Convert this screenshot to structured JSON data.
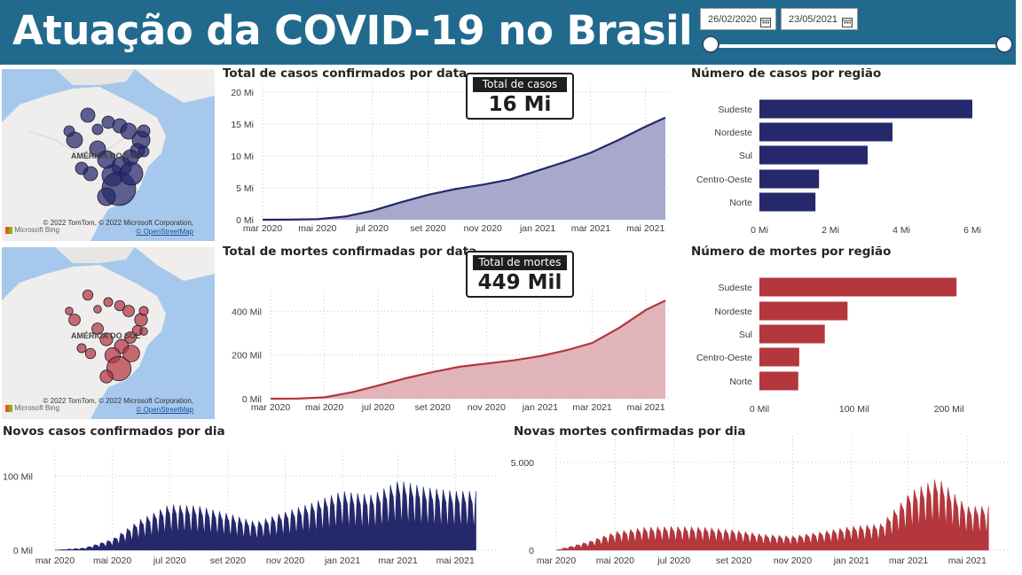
{
  "header": {
    "title": "Atuação da COVID-19 no Brasil"
  },
  "date_filter": {
    "start": "26/02/2020",
    "end": "23/05/2021"
  },
  "map_cases": {
    "region_label": "AMÉRICA DO SUL",
    "credit_line1": "© 2022 TomTom, © 2022 Microsoft Corporation,",
    "credit_line2": "© OpenStreetMap",
    "bing": "Microsoft Bing",
    "color": "#25286b"
  },
  "map_deaths": {
    "region_label": "AMÉRICA DO SUL",
    "credit_line1": "© 2022 TomTom, © 2022 Microsoft Corporation,",
    "credit_line2": "© OpenStreetMap",
    "bing": "Microsoft Bing",
    "color": "#b3373d"
  },
  "kpi_cases": {
    "label": "Total de casos",
    "value": "16 Mi"
  },
  "kpi_deaths": {
    "label": "Total de mortes",
    "value": "449 Mil"
  },
  "colors": {
    "navy": "#25286b",
    "navy_fill": "#a7a8cb",
    "red": "#b3373d",
    "red_fill": "#e0b4b8"
  },
  "chart_data": [
    {
      "id": "cum_cases",
      "type": "area",
      "title": "Total de casos confirmados por data",
      "x": [
        "2020-03-01",
        "2020-04-01",
        "2020-05-01",
        "2020-06-01",
        "2020-07-01",
        "2020-08-01",
        "2020-09-01",
        "2020-10-01",
        "2020-11-01",
        "2020-12-01",
        "2021-01-01",
        "2021-02-01",
        "2021-03-01",
        "2021-04-01",
        "2021-05-01",
        "2021-05-23"
      ],
      "y": [
        0.0,
        0.01,
        0.09,
        0.5,
        1.4,
        2.7,
        3.9,
        4.8,
        5.5,
        6.3,
        7.7,
        9.1,
        10.5,
        12.5,
        14.6,
        16.0
      ],
      "unit": "Mi",
      "x_ticks": [
        "mar 2020",
        "mai 2020",
        "jul 2020",
        "set 2020",
        "nov 2020",
        "jan 2021",
        "mar 2021",
        "mai 2021"
      ],
      "y_ticks": [
        "0 Mi",
        "5 Mi",
        "10 Mi",
        "15 Mi",
        "20 Mi"
      ],
      "ylim": [
        0,
        20
      ],
      "grid": true
    },
    {
      "id": "cum_deaths",
      "type": "area",
      "title": "Total de mortes confirmadas por data",
      "x": [
        "2020-03-01",
        "2020-04-01",
        "2020-05-01",
        "2020-06-01",
        "2020-07-01",
        "2020-08-01",
        "2020-09-01",
        "2020-10-01",
        "2020-11-01",
        "2020-12-01",
        "2021-01-01",
        "2021-02-01",
        "2021-03-01",
        "2021-04-01",
        "2021-05-01",
        "2021-05-23"
      ],
      "y": [
        0,
        0.5,
        6,
        29,
        60,
        93,
        122,
        146,
        161,
        175,
        195,
        223,
        255,
        325,
        406,
        449
      ],
      "unit": "Mil",
      "x_ticks": [
        "mar 2020",
        "mai 2020",
        "jul 2020",
        "set 2020",
        "nov 2020",
        "jan 2021",
        "mar 2021",
        "mai 2021"
      ],
      "y_ticks": [
        "0 Mil",
        "200 Mil",
        "400 Mil"
      ],
      "ylim": [
        0,
        470
      ],
      "grid": true
    },
    {
      "id": "cases_region",
      "type": "bar",
      "orientation": "horizontal",
      "title": "Número de casos por região",
      "categories": [
        "Sudeste",
        "Nordeste",
        "Sul",
        "Centro-Oeste",
        "Norte"
      ],
      "values": [
        6.0,
        3.75,
        3.05,
        1.68,
        1.58
      ],
      "unit": "Mi",
      "x_ticks": [
        "0 Mi",
        "2 Mi",
        "4 Mi",
        "6 Mi"
      ],
      "xlim": [
        0,
        6
      ]
    },
    {
      "id": "deaths_region",
      "type": "bar",
      "orientation": "horizontal",
      "title": "Número de mortes por região",
      "categories": [
        "Sudeste",
        "Nordeste",
        "Sul",
        "Centro-Oeste",
        "Norte"
      ],
      "values": [
        208,
        93,
        69,
        42,
        41
      ],
      "unit": "Mil",
      "x_ticks": [
        "0 Mil",
        "100 Mil",
        "200 Mil"
      ],
      "xlim": [
        0,
        220
      ]
    },
    {
      "id": "daily_cases",
      "type": "area",
      "title": "Novos casos confirmados por dia",
      "x_monthly": [
        "2020-03",
        "2020-04",
        "2020-05",
        "2020-06",
        "2020-07",
        "2020-08",
        "2020-09",
        "2020-10",
        "2020-11",
        "2020-12",
        "2021-01",
        "2021-02",
        "2021-03",
        "2021-04",
        "2021-05"
      ],
      "peak_monthly": [
        0,
        3,
        15,
        42,
        62,
        60,
        50,
        38,
        52,
        65,
        80,
        75,
        95,
        85,
        80
      ],
      "unit": "Mil",
      "x_ticks": [
        "mar 2020",
        "mai 2020",
        "jul 2020",
        "set 2020",
        "nov 2020",
        "jan 2021",
        "mar 2021",
        "mai 2021"
      ],
      "y_ticks": [
        "0 Mil",
        "100 Mil"
      ],
      "ylim": [
        0,
        120
      ],
      "grid": true
    },
    {
      "id": "daily_deaths",
      "type": "area",
      "title": "Novas mortes confirmadas por dia",
      "x_monthly": [
        "2020-03",
        "2020-04",
        "2020-05",
        "2020-06",
        "2020-07",
        "2020-08",
        "2020-09",
        "2020-10",
        "2020-11",
        "2020-12",
        "2021-01",
        "2021-02",
        "2021-03",
        "2021-04",
        "2021-05"
      ],
      "peak_monthly": [
        0,
        450,
        1050,
        1300,
        1350,
        1300,
        1150,
        900,
        800,
        1050,
        1350,
        1500,
        3300,
        4100,
        2500
      ],
      "unit": "",
      "x_ticks": [
        "mar 2020",
        "mai 2020",
        "jul 2020",
        "set 2020",
        "nov 2020",
        "jan 2021",
        "mar 2021",
        "mai 2021"
      ],
      "y_ticks": [
        "0",
        "5.000"
      ],
      "ylim": [
        0,
        6000
      ],
      "grid": true
    }
  ]
}
